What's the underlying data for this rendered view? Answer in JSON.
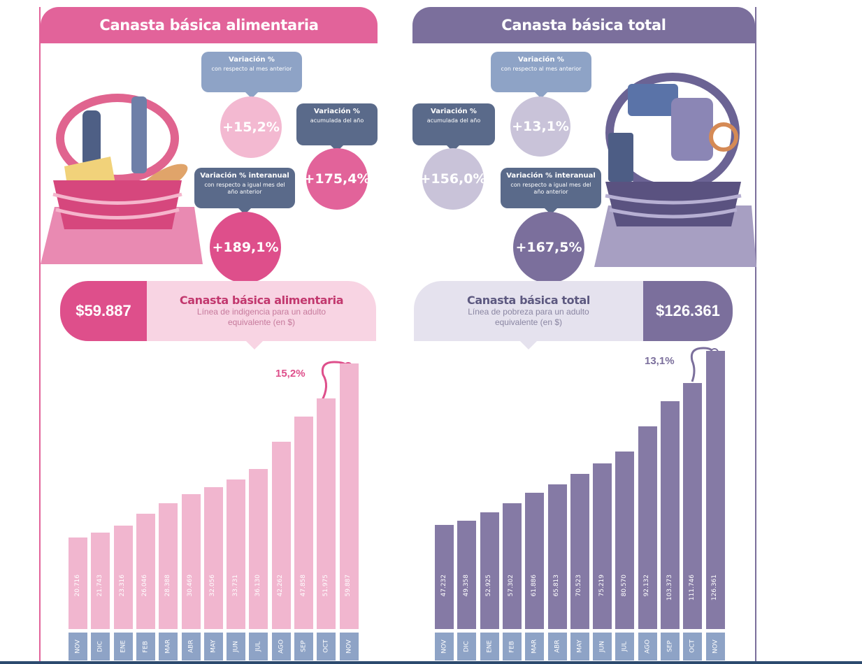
{
  "left": {
    "header": "Canasta básica alimentaria",
    "monthly": {
      "title": "Variación %",
      "sub": "con respecto al mes anterior",
      "value": "+15,2%"
    },
    "ytd": {
      "title": "Variación %",
      "sub": "acumulada del año",
      "value": "+175,4%"
    },
    "yoy": {
      "title": "Variación % interanual",
      "sub": "con respecto a igual mes del año anterior",
      "value": "+189,1%"
    },
    "price": "$59.887",
    "banner_title": "Canasta básica alimentaria",
    "banner_sub": "Línea de indigencia para un adulto equivalente (en $)",
    "pct_label": "15,2%"
  },
  "right": {
    "header": "Canasta básica total",
    "monthly": {
      "title": "Variación %",
      "sub": "con respecto al mes anterior",
      "value": "+13,1%"
    },
    "ytd": {
      "title": "Variación %",
      "sub": "acumulada del año",
      "value": "+156,0%"
    },
    "yoy": {
      "title": "Variación % interanual",
      "sub": "con respecto a igual mes del año anterior",
      "value": "+167,5%"
    },
    "price": "$126.361",
    "banner_title": "Canasta básica total",
    "banner_sub": "Línea de pobreza para un adulto equivalente (en $)",
    "pct_label": "13,1%"
  },
  "colors": {
    "pink": "#e2639a",
    "pink_light": "#f3b9d1",
    "pink_bar": "#f1b6cf",
    "purple": "#7b6f9c",
    "purple_light": "#c9c3d9",
    "purple_bar": "#857aa5",
    "navy": "#5a6a8a",
    "steel": "#8ea3c6"
  },
  "chart_data": [
    {
      "type": "bar",
      "categories": [
        "NOV",
        "DIC",
        "ENE",
        "FEB",
        "MAR",
        "ABR",
        "MAY",
        "JUN",
        "JUL",
        "AGO",
        "SEP",
        "OCT",
        "NOV"
      ],
      "values": [
        20716,
        21743,
        23316,
        26046,
        28388,
        30469,
        32056,
        33731,
        36130,
        42262,
        47858,
        51975,
        59887
      ],
      "value_labels": [
        "20.716",
        "21.743",
        "23.316",
        "26.046",
        "28.388",
        "30.469",
        "32.056",
        "33.731",
        "36.130",
        "42.262",
        "47.858",
        "51.975",
        "59.887"
      ],
      "title": "Canasta básica alimentaria",
      "highlight": "15,2%"
    },
    {
      "type": "bar",
      "categories": [
        "NOV",
        "DIC",
        "ENE",
        "FEB",
        "MAR",
        "ABR",
        "MAY",
        "JUN",
        "JUL",
        "AGO",
        "SEP",
        "OCT",
        "NOV"
      ],
      "values": [
        47232,
        49358,
        52925,
        57302,
        61886,
        65813,
        70523,
        75219,
        80570,
        92132,
        103373,
        111746,
        126361
      ],
      "value_labels": [
        "47.232",
        "49.358",
        "52.925",
        "57.302",
        "61.886",
        "65.813",
        "70.523",
        "75.219",
        "80.570",
        "92.132",
        "103.373",
        "111.746",
        "126.361"
      ],
      "title": "Canasta básica total",
      "highlight": "13,1%"
    }
  ]
}
